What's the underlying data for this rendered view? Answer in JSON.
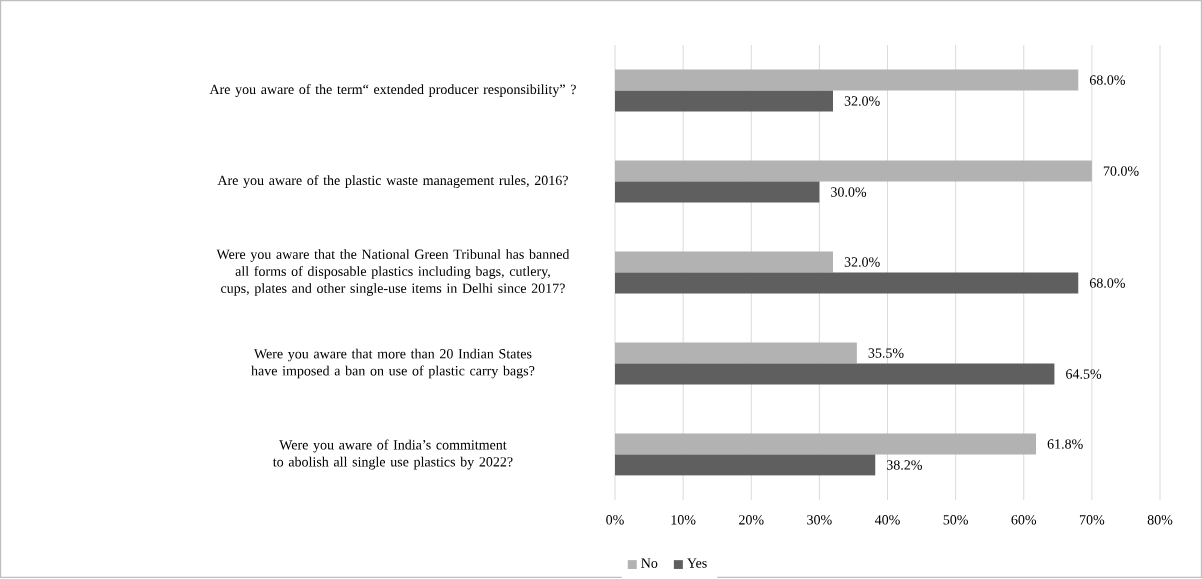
{
  "chart_data": {
    "type": "bar",
    "orientation": "horizontal",
    "categories": [
      "Are you aware of the term“ extended producer responsibility” ?",
      "Are you aware of the plastic waste management rules, 2016?",
      "Were you aware that the National Green Tribunal has banned all forms of disposable plastics including bags, cutlery, cups, plates and other single-use items in Delhi since 2017?",
      "Were you aware that more than 20 Indian States have imposed a ban on use of plastic carry bags?",
      "Were you aware of India’s commitment to abolish all single use plastics by 2022?"
    ],
    "series": [
      {
        "name": "No",
        "color": "#b2b2b2",
        "values": [
          68.0,
          70.0,
          32.0,
          35.5,
          61.8
        ],
        "value_labels": [
          "68.0%",
          "70.0%",
          "32.0%",
          "35.5%",
          "61.8%"
        ]
      },
      {
        "name": "Yes",
        "color": "#5f5f5f",
        "values": [
          32.0,
          30.0,
          68.0,
          64.5,
          38.2
        ],
        "value_labels": [
          "32.0%",
          "30.0%",
          "68.0%",
          "64.5%",
          "38.2%"
        ]
      }
    ],
    "xlim": [
      0,
      80
    ],
    "xticks": [
      {
        "value": 0,
        "label": "0%"
      },
      {
        "value": 10,
        "label": "10%"
      },
      {
        "value": 20,
        "label": "20%"
      },
      {
        "value": 30,
        "label": "30%"
      },
      {
        "value": 40,
        "label": "40%"
      },
      {
        "value": 50,
        "label": "50%"
      },
      {
        "value": 60,
        "label": "60%"
      },
      {
        "value": 70,
        "label": "70%"
      },
      {
        "value": 80,
        "label": "80%"
      }
    ],
    "grid": "x",
    "legend": "bottom"
  }
}
